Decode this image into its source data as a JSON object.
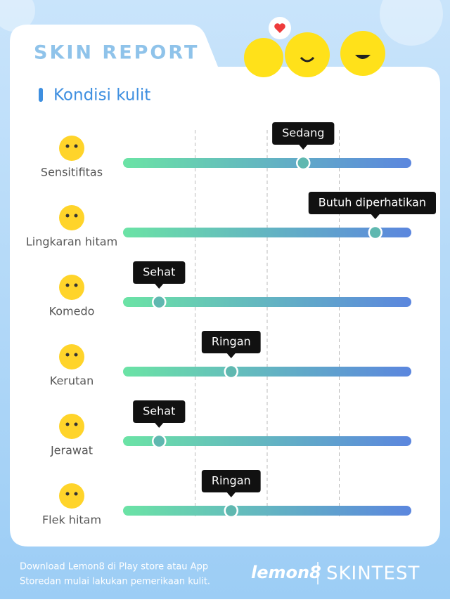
{
  "header": {
    "title": "SKIN REPORT",
    "section": "Kondisi kulit"
  },
  "scale": {
    "xlim": [
      0,
      4
    ],
    "xticks": [
      1,
      2,
      3
    ]
  },
  "rows": [
    {
      "name": "Sensitifitas",
      "level": "Sedang",
      "value": 2.5
    },
    {
      "name": "Lingkaran hitam",
      "level": "Butuh diperhatikan",
      "value": 3.5
    },
    {
      "name": "Komedo",
      "level": "Sehat",
      "value": 0.5
    },
    {
      "name": "Kerutan",
      "level": "Ringan",
      "value": 1.5
    },
    {
      "name": "Jerawat",
      "level": "Sehat",
      "value": 0.5
    },
    {
      "name": "Flek hitam",
      "level": "Ringan",
      "value": 1.5
    }
  ],
  "footer": {
    "lines": [
      "Download Lemon8 di Play store atau App",
      "Storedan mulai lakukan pemerikaan kulit."
    ],
    "brand": "lemon8",
    "product": "SKINTEST"
  }
}
